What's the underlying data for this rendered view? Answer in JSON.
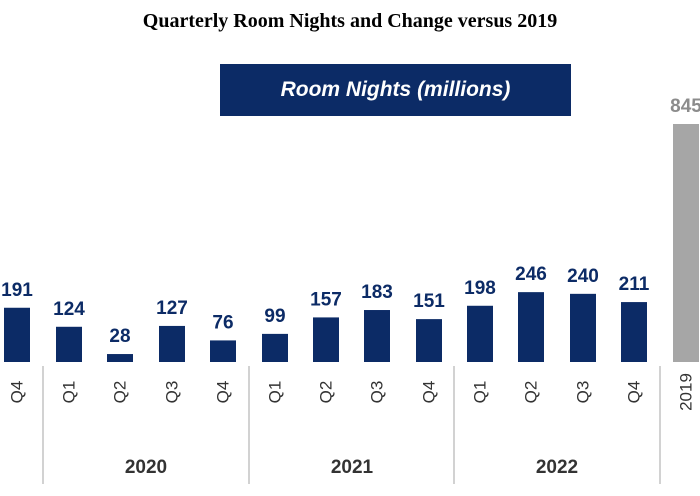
{
  "title": "Quarterly Room Nights and Change versus 2019",
  "legend": "Room Nights (millions)",
  "colors": {
    "bar": "#0c2b66",
    "baseline": "#a6a6a6",
    "value_text": "#0c2b66",
    "baseline_text": "#8c8c8c"
  },
  "chart_data": {
    "type": "bar",
    "title": "Quarterly Room Nights and Change versus 2019",
    "series": [
      {
        "name": "Room Nights (millions)"
      }
    ],
    "categories": [
      "Q4",
      "Q1",
      "Q2",
      "Q3",
      "Q4",
      "Q1",
      "Q2",
      "Q3",
      "Q4",
      "Q1",
      "Q2",
      "Q3",
      "Q4",
      "2019"
    ],
    "values": [
      191,
      124,
      28,
      127,
      76,
      99,
      157,
      183,
      151,
      198,
      246,
      240,
      211,
      845
    ],
    "value_labels": [
      "191",
      "124",
      "28",
      "127",
      "76",
      "99",
      "157",
      "183",
      "151",
      "198",
      "246",
      "240",
      "211",
      "845"
    ],
    "year_groups": [
      "2020",
      "2021",
      "2022"
    ],
    "grid": false
  }
}
